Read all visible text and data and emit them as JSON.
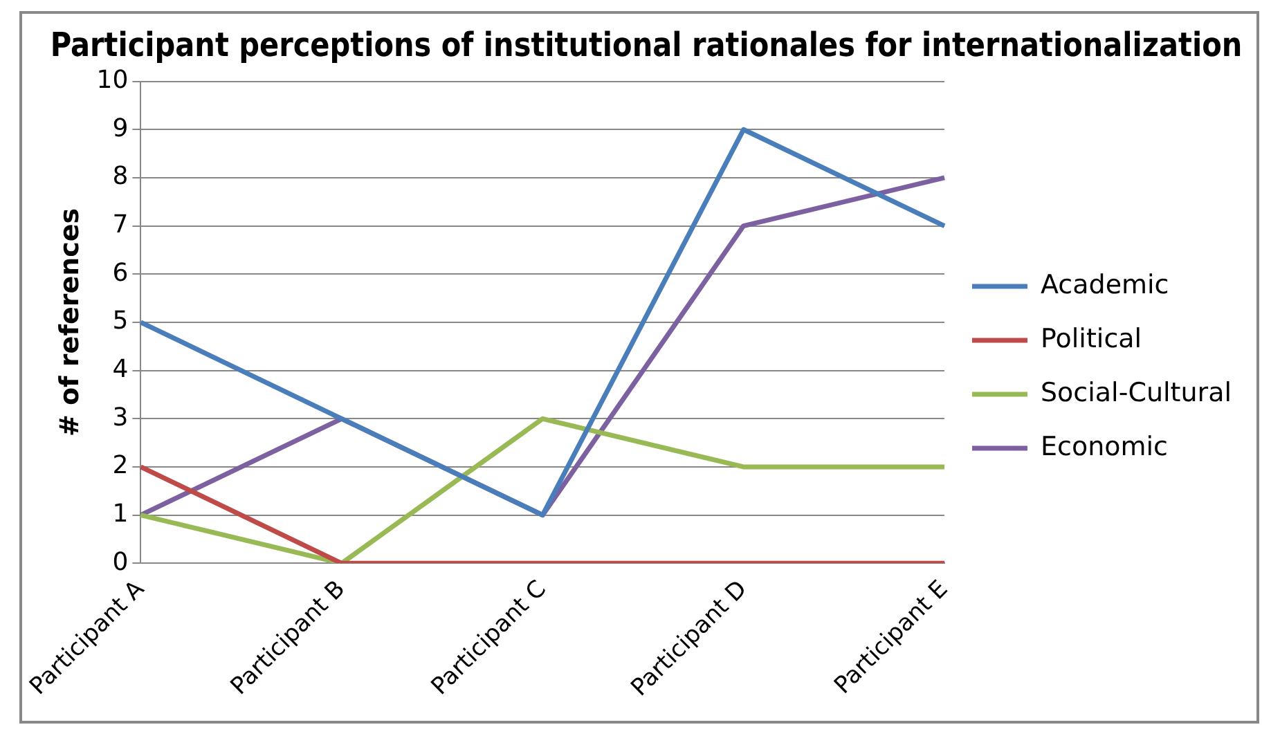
{
  "chart_data": {
    "type": "line",
    "title": "Participant perceptions of institutional rationales for internationalization",
    "ylabel": "# of references",
    "categories": [
      "Participant A",
      "Participant B",
      "Participant C",
      "Participant D",
      "Participant E"
    ],
    "series": [
      {
        "name": "Academic",
        "color": "#4a7ebb",
        "values": [
          5,
          3,
          1,
          9,
          7
        ]
      },
      {
        "name": "Political",
        "color": "#be4b48",
        "values": [
          2,
          0,
          0,
          0,
          0
        ]
      },
      {
        "name": "Social-Cultural",
        "color": "#98b954",
        "values": [
          1,
          0,
          3,
          2,
          2
        ]
      },
      {
        "name": "Economic",
        "color": "#7d60a0",
        "values": [
          1,
          3,
          1,
          7,
          8
        ]
      }
    ],
    "ylim": [
      0,
      10
    ],
    "yticks": [
      0,
      1,
      2,
      3,
      4,
      5,
      6,
      7,
      8,
      9,
      10
    ],
    "grid": "y",
    "legend": "right",
    "marker": "none"
  }
}
